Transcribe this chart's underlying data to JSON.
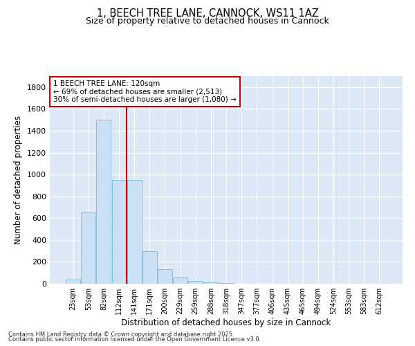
{
  "title_line1": "1, BEECH TREE LANE, CANNOCK, WS11 1AZ",
  "title_line2": "Size of property relative to detached houses in Cannock",
  "xlabel": "Distribution of detached houses by size in Cannock",
  "ylabel": "Number of detached properties",
  "categories": [
    "23sqm",
    "53sqm",
    "82sqm",
    "112sqm",
    "141sqm",
    "171sqm",
    "200sqm",
    "229sqm",
    "259sqm",
    "288sqm",
    "318sqm",
    "347sqm",
    "377sqm",
    "406sqm",
    "435sqm",
    "465sqm",
    "494sqm",
    "524sqm",
    "553sqm",
    "583sqm",
    "612sqm"
  ],
  "values": [
    40,
    650,
    1500,
    950,
    950,
    295,
    130,
    60,
    25,
    10,
    5,
    0,
    0,
    0,
    0,
    0,
    0,
    0,
    0,
    0,
    0
  ],
  "bar_color": "#cce0f5",
  "bar_edge_color": "#7ab8d9",
  "vline_x_index": 3.5,
  "vline_color": "#cc0000",
  "annotation_text": "1 BEECH TREE LANE: 120sqm\n← 69% of detached houses are smaller (2,513)\n30% of semi-detached houses are larger (1,080) →",
  "annotation_box_color": "#ffffff",
  "annotation_box_edge": "#cc0000",
  "ylim": [
    0,
    1900
  ],
  "yticks": [
    0,
    200,
    400,
    600,
    800,
    1000,
    1200,
    1400,
    1600,
    1800
  ],
  "bg_color": "#dce8f5",
  "footer_line1": "Contains HM Land Registry data © Crown copyright and database right 2025.",
  "footer_line2": "Contains public sector information licensed under the Open Government Licence v3.0."
}
